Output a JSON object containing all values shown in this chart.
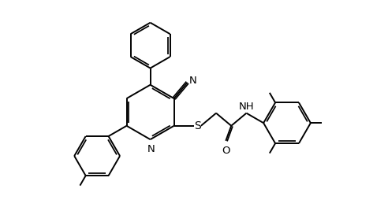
{
  "bg": "#ffffff",
  "lc": "#000000",
  "lw": 1.4,
  "fig_w": 4.92,
  "fig_h": 2.68,
  "dpi": 100,
  "xlim": [
    0,
    10
  ],
  "ylim": [
    0,
    5.45
  ]
}
